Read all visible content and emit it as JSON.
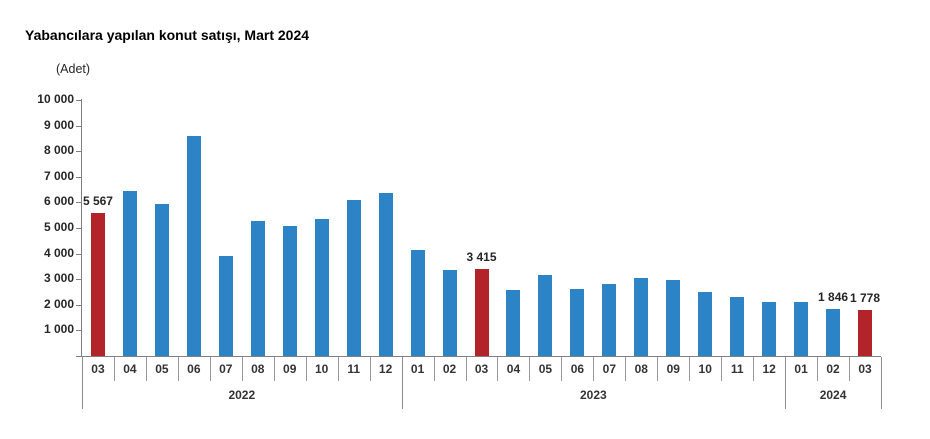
{
  "chart_data": {
    "type": "bar",
    "title": "Yabancılara yapılan konut satışı, Mart 2024",
    "ylabel": "(Adet)",
    "ylim": [
      0,
      10000
    ],
    "ytick_values": [
      10000,
      9000,
      8000,
      7000,
      6000,
      5000,
      4000,
      3000,
      2000,
      1000
    ],
    "grid": "off",
    "legend": "none",
    "bar_color": "#2C83C5",
    "highlight_color": "#B2242A",
    "axis_color": "#808080",
    "year_groups": [
      {
        "label": "2022",
        "count": 10
      },
      {
        "label": "2023",
        "count": 12
      },
      {
        "label": "2024",
        "count": 3
      }
    ],
    "bars": [
      {
        "year": "2022",
        "month": "03",
        "value": 5567,
        "highlight": true,
        "label": "5 567"
      },
      {
        "year": "2022",
        "month": "04",
        "value": 6450,
        "highlight": false
      },
      {
        "year": "2022",
        "month": "05",
        "value": 5950,
        "highlight": false
      },
      {
        "year": "2022",
        "month": "06",
        "value": 8600,
        "highlight": false
      },
      {
        "year": "2022",
        "month": "07",
        "value": 3900,
        "highlight": false
      },
      {
        "year": "2022",
        "month": "08",
        "value": 5270,
        "highlight": false
      },
      {
        "year": "2022",
        "month": "09",
        "value": 5060,
        "highlight": false
      },
      {
        "year": "2022",
        "month": "10",
        "value": 5370,
        "highlight": false
      },
      {
        "year": "2022",
        "month": "11",
        "value": 6080,
        "highlight": false
      },
      {
        "year": "2022",
        "month": "12",
        "value": 6380,
        "highlight": false
      },
      {
        "year": "2023",
        "month": "01",
        "value": 4160,
        "highlight": false
      },
      {
        "year": "2023",
        "month": "02",
        "value": 3350,
        "highlight": false
      },
      {
        "year": "2023",
        "month": "03",
        "value": 3415,
        "highlight": true,
        "label": "3 415"
      },
      {
        "year": "2023",
        "month": "04",
        "value": 2560,
        "highlight": false
      },
      {
        "year": "2023",
        "month": "05",
        "value": 3170,
        "highlight": false
      },
      {
        "year": "2023",
        "month": "06",
        "value": 2620,
        "highlight": false
      },
      {
        "year": "2023",
        "month": "07",
        "value": 2830,
        "highlight": false
      },
      {
        "year": "2023",
        "month": "08",
        "value": 3060,
        "highlight": false
      },
      {
        "year": "2023",
        "month": "09",
        "value": 2970,
        "highlight": false
      },
      {
        "year": "2023",
        "month": "10",
        "value": 2510,
        "highlight": false
      },
      {
        "year": "2023",
        "month": "11",
        "value": 2320,
        "highlight": false
      },
      {
        "year": "2023",
        "month": "12",
        "value": 2090,
        "highlight": false
      },
      {
        "year": "2024",
        "month": "01",
        "value": 2100,
        "highlight": false
      },
      {
        "year": "2024",
        "month": "02",
        "value": 1846,
        "highlight": false,
        "label": "1 846"
      },
      {
        "year": "2024",
        "month": "03",
        "value": 1778,
        "highlight": true,
        "label": "1 778"
      }
    ]
  }
}
